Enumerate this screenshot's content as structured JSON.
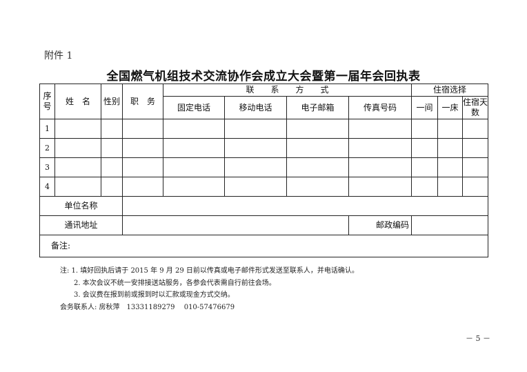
{
  "attachment": "附件 1",
  "title": "全国燃气机组技术交流协作会成立大会暨第一届年会回执表",
  "table": {
    "seq": "序号",
    "name": "姓　名",
    "gender": "性别",
    "position": "职　务",
    "contact": "联　　系　　方　　式",
    "landline": "固定电话",
    "mobile": "移动电话",
    "email": "电子邮箱",
    "fax": "传真号码",
    "lodging": "住宿选择",
    "room": "一间",
    "bed": "一床",
    "days": "住宿天数",
    "rows": [
      "1",
      "2",
      "3",
      "4"
    ],
    "unit": "单位名称",
    "address": "通讯地址",
    "postcode": "邮政编码",
    "remarks": "备注:"
  },
  "notes": [
    "注: 1. 填好回执后请于 2015 年 9 月 29 日前以传真或电子邮件形式发送至联系人，并电话确认。",
    "2. 本次会议不统一安排接送站服务，各参会代表需自行前往会场。",
    "3. 会议费在报到前或报到时以汇款或现金方式交纳。",
    "会务联系人: 房秋萍　13331189279　 010-57476679"
  ],
  "page_number": "－ 5 －"
}
